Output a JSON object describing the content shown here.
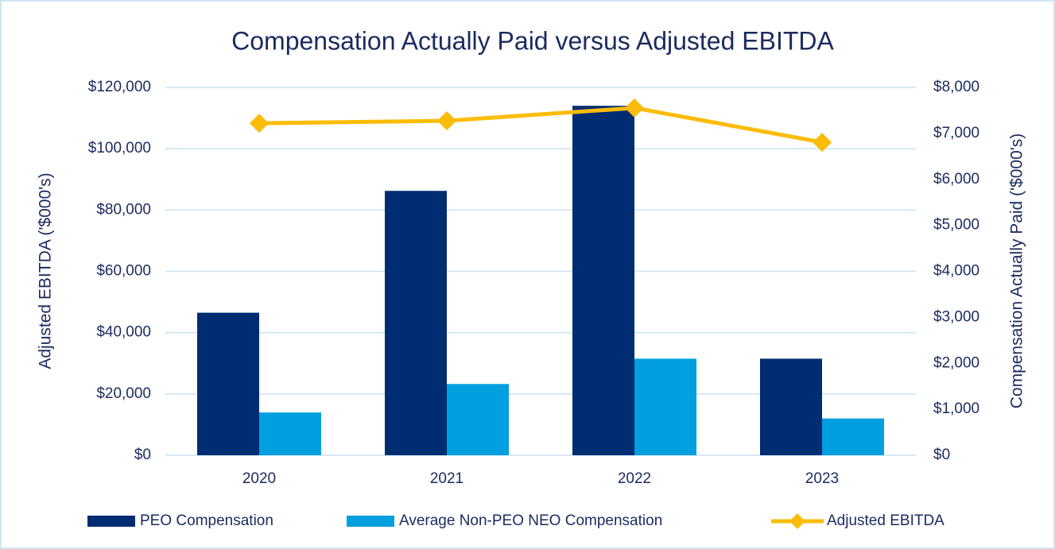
{
  "chart_data": {
    "type": "bar_line",
    "title": "Compensation Actually Paid versus Adjusted EBITDA",
    "y_label": "Adjusted EBITDA ('$000's)",
    "y2_label": "Compensation Actually Paid ('$000's)",
    "categories": [
      "2020",
      "2021",
      "2022",
      "2023"
    ],
    "series": [
      {
        "name": "PEO Compensation",
        "color": "#002d72",
        "type": "bar",
        "axis": "y2",
        "values": [
          3100,
          5750,
          7600,
          2100
        ]
      },
      {
        "name": "Average Non-PEO NEO Compensation",
        "color": "#009fdf",
        "type": "bar",
        "axis": "y2",
        "values": [
          930,
          1550,
          2100,
          800
        ]
      },
      {
        "name": "Adjusted EBITDA",
        "color": "#fbbc09",
        "type": "line",
        "axis": "y",
        "values": [
          108300,
          109100,
          113300,
          102100
        ]
      }
    ],
    "ylim": [
      0,
      120000
    ],
    "yticks": [
      {
        "value": 0,
        "label": "$0"
      },
      {
        "value": 20000,
        "label": "$20,000"
      },
      {
        "value": 40000,
        "label": "$40,000"
      },
      {
        "value": 60000,
        "label": "$60,000"
      },
      {
        "value": 80000,
        "label": "$80,000"
      },
      {
        "value": 100000,
        "label": "$100,000"
      },
      {
        "value": 120000,
        "label": "$120,000"
      }
    ],
    "y2lim": [
      0,
      8000
    ],
    "y2ticks": [
      {
        "value": 0,
        "label": "$0"
      },
      {
        "value": 1000,
        "label": "$1,000"
      },
      {
        "value": 2000,
        "label": "$2,000"
      },
      {
        "value": 3000,
        "label": "$3,000"
      },
      {
        "value": 4000,
        "label": "$4,000"
      },
      {
        "value": 5000,
        "label": "$5,000"
      },
      {
        "value": 6000,
        "label": "$6,000"
      },
      {
        "value": 7000,
        "label": "$7,000"
      },
      {
        "value": 8000,
        "label": "$8,000"
      }
    ],
    "grid": true,
    "legend": "bottom"
  }
}
